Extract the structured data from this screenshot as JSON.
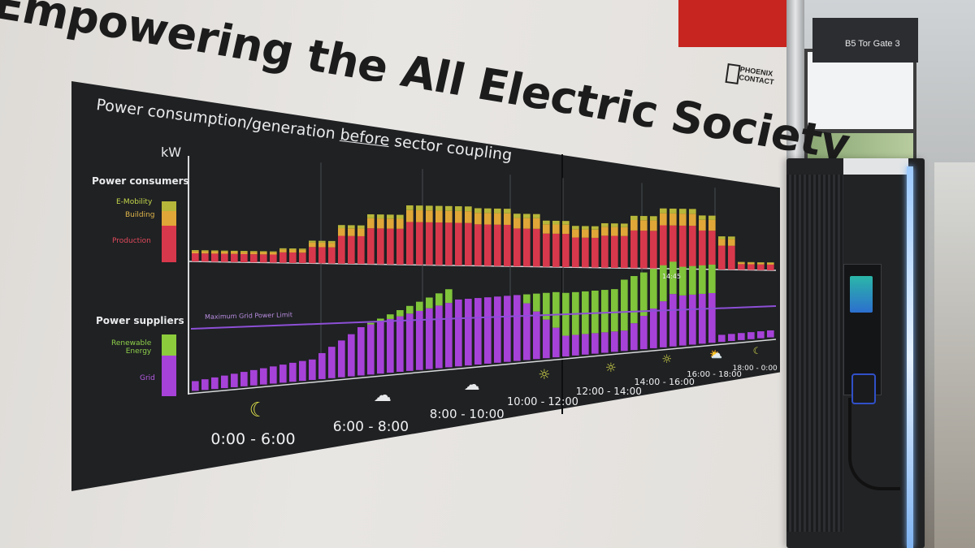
{
  "headline": "Empowering the All Electric Society",
  "logo": {
    "line1": "PHOENIX",
    "line2": "CONTACT"
  },
  "booth_sign": "B5 Tor Gate 3",
  "display": {
    "title_before": "Power consumption/generation ",
    "title_emph": "before",
    "title_after": " sector coupling",
    "unit": "kW",
    "consumers": {
      "heading": "Power consumers",
      "legend": {
        "emobility": "E-Mobility",
        "building": "Building",
        "production": "Production"
      }
    },
    "suppliers": {
      "heading": "Power suppliers",
      "legend": {
        "renewable_1": "Renewable",
        "renewable_2": "Energy",
        "grid": "Grid"
      }
    },
    "grid_limit_label": "Maximum Grid Power Limit",
    "peak_label": "14:45",
    "time_slots": [
      {
        "label": "0:00 - 6:00",
        "icon": "moon-icon"
      },
      {
        "label": "6:00 - 8:00",
        "icon": "cloud-icon"
      },
      {
        "label": "8:00 - 10:00",
        "icon": "cloud-icon"
      },
      {
        "label": "10:00 - 12:00",
        "icon": "sun-icon"
      },
      {
        "label": "12:00 - 14:00",
        "icon": "sun-icon"
      },
      {
        "label": "14:00 - 16:00",
        "icon": "sun-icon"
      },
      {
        "label": "16:00 - 18:00",
        "icon": "cloud-sun-icon"
      },
      {
        "label": "18:00 - 0:00",
        "icon": "moon-icon"
      }
    ],
    "colors": {
      "production": "#d8384c",
      "building": "#e0a637",
      "emobility": "#b6b63a",
      "renewable": "#7fc43a",
      "grid": "#a642d8",
      "limit_line": "#8d4fd6"
    }
  }
}
